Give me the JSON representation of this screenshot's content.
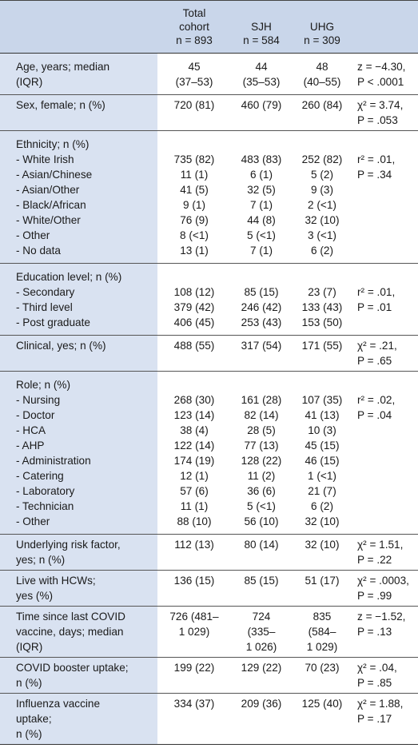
{
  "header": {
    "col1": "",
    "col2": [
      "Total",
      "cohort",
      "n = 893"
    ],
    "col3": [
      "SJH",
      "n = 584"
    ],
    "col4": [
      "UHG",
      "n = 309"
    ],
    "col5": ""
  },
  "rows": [
    {
      "label": [
        "Age, years; median",
        "(IQR)"
      ],
      "total": [
        "45",
        "(37–53)"
      ],
      "sjh": [
        "44",
        "(35–53)"
      ],
      "uhg": [
        "48",
        "(40–55)"
      ],
      "stat": [
        "z = −4.30,",
        "P < .0001"
      ]
    },
    {
      "label": [
        "Sex, female; n (%)"
      ],
      "total": [
        "720 (81)"
      ],
      "sjh": [
        "460 (79)"
      ],
      "uhg": [
        "260 (84)"
      ],
      "stat": [
        "χ² = 3.74,",
        "P = .053"
      ]
    },
    {
      "label": [
        "Ethnicity; n (%)",
        "- White Irish",
        "- Asian/Chinese",
        "- Asian/Other",
        "- Black/African",
        "- White/Other",
        "- Other",
        "- No data"
      ],
      "total": [
        "",
        "735 (82)",
        "11 (1)",
        "41 (5)",
        "9 (1)",
        "76 (9)",
        "8 (<1)",
        "13 (1)"
      ],
      "sjh": [
        "",
        "483 (83)",
        "6 (1)",
        "32 (5)",
        "7 (1)",
        "44 (8)",
        "5 (<1)",
        "7 (1)"
      ],
      "uhg": [
        "",
        "252 (82)",
        "5 (2)",
        "9 (3)",
        "2 (<1)",
        "32 (10)",
        "3 (<1)",
        "6 (2)"
      ],
      "stat": [
        "",
        "r² = .01,",
        "P = .34"
      ]
    },
    {
      "label": [
        "Education level; n (%)",
        "- Secondary",
        "- Third level",
        "- Post graduate"
      ],
      "total": [
        "",
        "108 (12)",
        "379 (42)",
        "406 (45)"
      ],
      "sjh": [
        "",
        "85 (15)",
        "246 (42)",
        "253 (43)"
      ],
      "uhg": [
        "",
        "23 (7)",
        "133 (43)",
        "153 (50)"
      ],
      "stat": [
        "",
        "r² = .01,",
        "P = .01"
      ]
    },
    {
      "label": [
        "Clinical, yes; n (%)"
      ],
      "total": [
        "488 (55)"
      ],
      "sjh": [
        "317 (54)"
      ],
      "uhg": [
        "171 (55)"
      ],
      "stat": [
        "χ² = .21,",
        "P = .65"
      ]
    },
    {
      "label": [
        "Role; n (%)",
        "- Nursing",
        "- Doctor",
        "- HCA",
        "- AHP",
        "- Administration",
        "- Catering",
        "- Laboratory",
        "- Technician",
        "- Other"
      ],
      "total": [
        "",
        "268 (30)",
        "123 (14)",
        "38 (4)",
        "122 (14)",
        "174 (19)",
        "12 (1)",
        "57 (6)",
        "11 (1)",
        "88 (10)"
      ],
      "sjh": [
        "",
        "161 (28)",
        "82 (14)",
        "28 (5)",
        "77 (13)",
        "128 (22)",
        "11 (2)",
        "36 (6)",
        "5 (<1)",
        "56 (10)"
      ],
      "uhg": [
        "",
        "107 (35)",
        "41 (13)",
        "10 (3)",
        "45 (15)",
        "46 (15)",
        "1 (<1)",
        "21 (7)",
        "6 (2)",
        "32 (10)"
      ],
      "stat": [
        "",
        "r² = .02,",
        "P = .04"
      ]
    },
    {
      "label": [
        "Underlying risk factor,",
        "yes; n (%)"
      ],
      "total": [
        "112 (13)"
      ],
      "sjh": [
        "80 (14)"
      ],
      "uhg": [
        "32 (10)"
      ],
      "stat": [
        "χ² = 1.51,",
        "P = .22"
      ]
    },
    {
      "label": [
        "Live with HCWs;",
        "yes (%)"
      ],
      "total": [
        "136 (15)"
      ],
      "sjh": [
        "85 (15)"
      ],
      "uhg": [
        "51 (17)"
      ],
      "stat": [
        "χ² = .0003,",
        "P = .99"
      ]
    },
    {
      "label": [
        "Time since last COVID",
        "vaccine, days; median",
        "(IQR)"
      ],
      "total": [
        "726 (481–",
        "1 029)"
      ],
      "sjh": [
        "724",
        "(335–",
        "1 026)"
      ],
      "uhg": [
        "835",
        "(584–",
        "1 029)"
      ],
      "stat": [
        "z = −1.52,",
        "P = .13"
      ]
    },
    {
      "label": [
        "COVID booster uptake;",
        "n (%)"
      ],
      "total": [
        "199 (22)"
      ],
      "sjh": [
        "129 (22)"
      ],
      "uhg": [
        "70 (23)"
      ],
      "stat": [
        "χ² = .04,",
        "P = .85"
      ]
    },
    {
      "label": [
        "Influenza vaccine",
        "uptake;",
        "n (%)"
      ],
      "total": [
        "334 (37)"
      ],
      "sjh": [
        "209 (36)"
      ],
      "uhg": [
        "125 (40)"
      ],
      "stat": [
        "χ² = 1.88,",
        "P = .17"
      ]
    }
  ]
}
